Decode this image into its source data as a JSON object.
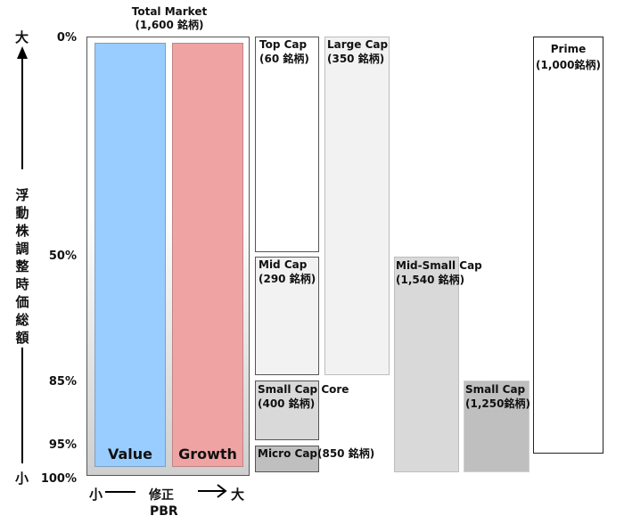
{
  "market": {
    "title": "Total Market",
    "count": "(1,600 銘柄)"
  },
  "y_axis": {
    "top_label": "大",
    "bottom_label": "小",
    "title_chars": [
      "浮",
      "動",
      "株",
      "調",
      "整",
      "時",
      "価",
      "総",
      "額"
    ],
    "ticks": [
      {
        "label": "0%"
      },
      {
        "label": "50%"
      },
      {
        "label": "85%"
      },
      {
        "label": "95%"
      },
      {
        "label": "100%"
      }
    ]
  },
  "x_axis": {
    "left_label": "小",
    "center_label": "修正",
    "right_label": "大",
    "title": "PBR"
  },
  "style_bars": {
    "value": {
      "label": "Value",
      "color": "#99ccff"
    },
    "growth": {
      "label": "Growth",
      "color": "#f0a3a3"
    }
  },
  "segments": {
    "top_cap": {
      "name": "Top Cap",
      "count": "(60 銘柄)"
    },
    "large_cap": {
      "name": "Large Cap",
      "count": "(350 銘柄)"
    },
    "mid_cap": {
      "name": "Mid Cap",
      "count": "(290 銘柄)"
    },
    "small_cap_core": {
      "name": "Small Cap Core",
      "count": "(400 銘柄)"
    },
    "micro_cap": {
      "name": "Micro Cap(850 銘柄)"
    },
    "mid_small_cap": {
      "name": "Mid-Small Cap",
      "count": "(1,540 銘柄)"
    },
    "small_cap": {
      "name": "Small Cap",
      "count": "(1,250銘柄)"
    },
    "prime": {
      "name": "Prime",
      "count": "(1,000銘柄)"
    }
  },
  "colors": {
    "value_bar": "#99ccff",
    "growth_bar": "#f0a3a3",
    "light_gray": "#f2f2f2",
    "mid_gray": "#d9d9d9",
    "dark_gray": "#bfbfbf"
  }
}
